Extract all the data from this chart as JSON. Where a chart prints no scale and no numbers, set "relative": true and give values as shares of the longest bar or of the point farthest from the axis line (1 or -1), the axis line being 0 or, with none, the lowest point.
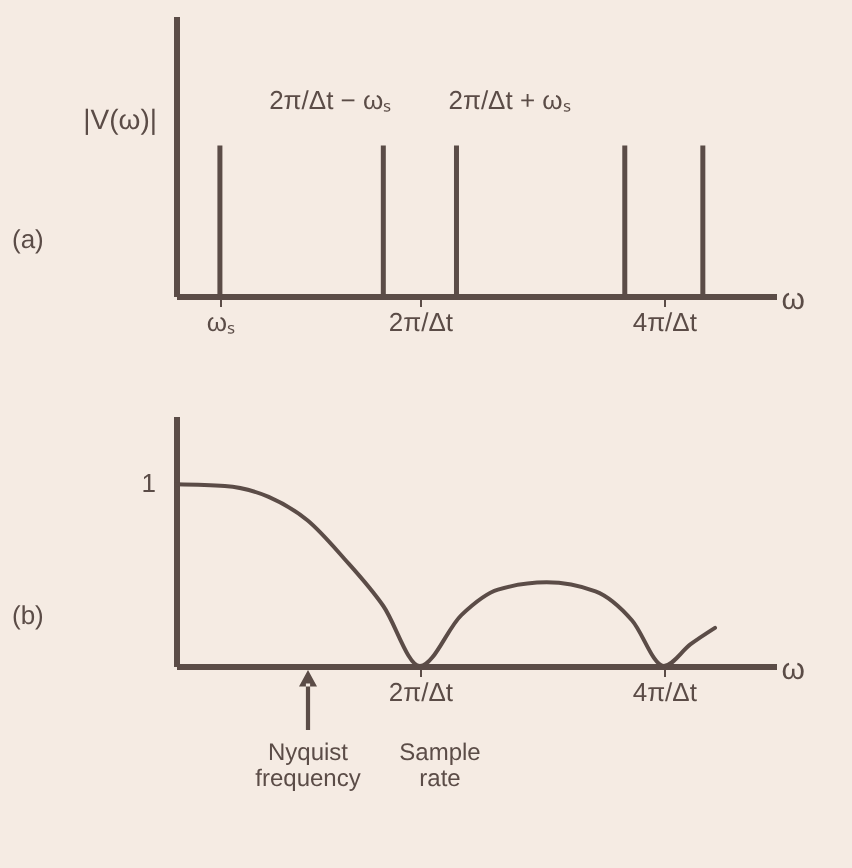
{
  "chart_data": [
    {
      "type": "bar",
      "ylabel": "|V(ω)|",
      "xlabel": "ω",
      "relative": true,
      "x": [
        0.36,
        1.7,
        2.3,
        3.68,
        4.32
      ],
      "series": [
        {
          "color": "#5b4c47",
          "values": [
            1,
            1,
            1,
            1,
            1
          ]
        }
      ],
      "xlim": [
        0,
        4.92
      ],
      "xticks": [
        {
          "value": 0.36,
          "label": "ωₛ"
        },
        {
          "value": 2,
          "label": "2π/Δt"
        },
        {
          "value": 4,
          "label": "4π/Δt"
        }
      ],
      "annotations": [
        "(a)",
        {
          "text": "2π/Δt − ωₛ",
          "x": 1.7,
          "y": 1
        },
        {
          "text": "2π/Δt + ωₛ",
          "x": 2.3,
          "y": 1
        }
      ]
    },
    {
      "type": "line",
      "xlabel": "ω",
      "relative": true,
      "x": [
        0,
        0.4,
        0.76,
        1.08,
        1.38,
        1.7,
        2,
        2.34,
        2.64,
        3.04,
        3.44,
        3.74,
        4,
        4.22,
        4.42
      ],
      "series": [
        {
          "color": "#5b4c47",
          "values": [
            1,
            0.99,
            0.93,
            0.8,
            0.59,
            0.33,
            0,
            0.28,
            0.42,
            0.46,
            0.41,
            0.25,
            0,
            0.12,
            0.21
          ]
        }
      ],
      "xlim": [
        0,
        4.92
      ],
      "xticks": [
        {
          "value": 2,
          "label": "2π/Δt"
        },
        {
          "value": 4,
          "label": "4π/Δt"
        }
      ],
      "annotations": [
        "(b)",
        {
          "text": "1",
          "x": 0,
          "y": 1
        },
        "Nyquist frequency",
        "Sample rate"
      ]
    }
  ]
}
